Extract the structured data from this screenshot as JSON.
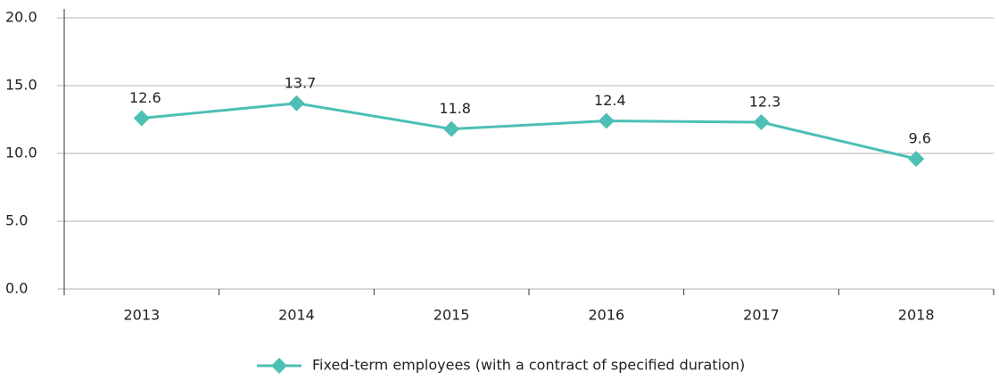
{
  "chart_data": {
    "type": "line",
    "categories": [
      "2013",
      "2014",
      "2015",
      "2016",
      "2017",
      "2018"
    ],
    "series": [
      {
        "name": "Fixed-term employees (with a contract of specified duration)",
        "color": "#4dbfb5",
        "values": [
          12.6,
          13.7,
          11.8,
          12.4,
          12.3,
          9.6
        ]
      }
    ],
    "ylim": [
      0,
      20
    ],
    "yticks": [
      {
        "value": 0,
        "label": "0.0"
      },
      {
        "value": 5,
        "label": "5.0"
      },
      {
        "value": 10,
        "label": "10.0"
      },
      {
        "value": 15,
        "label": "15.0"
      },
      {
        "value": 20,
        "label": "20.0"
      }
    ],
    "grid": true,
    "legend": "bottom"
  }
}
